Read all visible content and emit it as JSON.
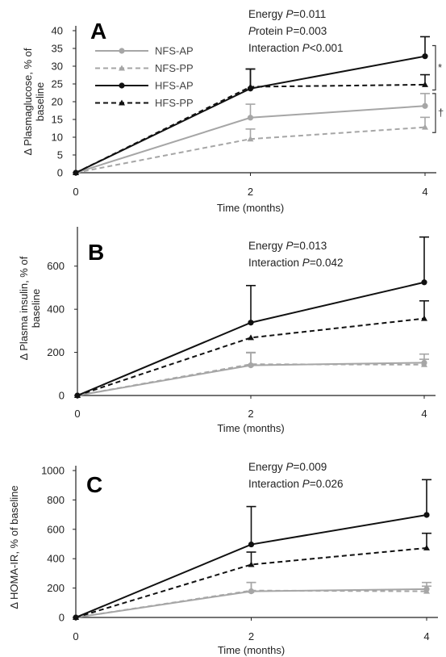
{
  "colors": {
    "nfs": "#a6a6a6",
    "hfs": "#111111",
    "axis": "#222222"
  },
  "legend": [
    {
      "label": "NFS-AP",
      "color": "#a6a6a6",
      "dashed": false,
      "marker": "circle"
    },
    {
      "label": "NFS-PP",
      "color": "#a6a6a6",
      "dashed": true,
      "marker": "triangle"
    },
    {
      "label": "HFS-AP",
      "color": "#111111",
      "dashed": false,
      "marker": "circle"
    },
    {
      "label": "HFS-PP",
      "color": "#111111",
      "dashed": true,
      "marker": "triangle"
    }
  ],
  "chart_data": [
    {
      "type": "line",
      "panel_label": "A",
      "ylabel": "Δ Plasmaglucose, % of baseline",
      "xlabel": "Time (months)",
      "x": [
        0,
        2,
        4
      ],
      "xticks": [
        "0",
        "2",
        "4"
      ],
      "ylim": [
        0,
        40
      ],
      "yticks": [
        0,
        5,
        10,
        15,
        20,
        25,
        30,
        35,
        40
      ],
      "stats": [
        "Energy P=0.011",
        "Protein P=0.003",
        "Interaction P<0.001"
      ],
      "significance": [
        "*",
        "†"
      ],
      "series": [
        {
          "name": "NFS-AP",
          "color": "#a6a6a6",
          "dashed": false,
          "marker": "circle",
          "values": [
            0,
            15.5,
            18.8
          ],
          "errors": [
            0,
            3.8,
            3.5
          ]
        },
        {
          "name": "NFS-PP",
          "color": "#a6a6a6",
          "dashed": true,
          "marker": "triangle",
          "values": [
            0,
            9.5,
            12.8
          ],
          "errors": [
            0,
            2.8,
            2.8
          ]
        },
        {
          "name": "HFS-AP",
          "color": "#111111",
          "dashed": false,
          "marker": "circle",
          "values": [
            0,
            23.7,
            32.8
          ],
          "errors": [
            0,
            5.5,
            5.5
          ]
        },
        {
          "name": "HFS-PP",
          "color": "#111111",
          "dashed": true,
          "marker": "triangle",
          "values": [
            0,
            24.2,
            24.8
          ],
          "errors": [
            0,
            5.0,
            2.8
          ]
        }
      ]
    },
    {
      "type": "line",
      "panel_label": "B",
      "ylabel": "Δ Plasma insulin, % of baseline",
      "xlabel": "Time (months)",
      "x": [
        0,
        2,
        4
      ],
      "xticks": [
        "0",
        "2",
        "4"
      ],
      "ylim": [
        0,
        760
      ],
      "yticks": [
        0,
        200,
        400,
        600
      ],
      "stats": [
        "Energy P=0.013",
        "Interaction P=0.042"
      ],
      "significance": [],
      "series": [
        {
          "name": "NFS-AP",
          "color": "#a6a6a6",
          "dashed": false,
          "marker": "circle",
          "values": [
            0,
            140,
            152
          ],
          "errors": [
            0,
            58,
            40
          ]
        },
        {
          "name": "NFS-PP",
          "color": "#a6a6a6",
          "dashed": true,
          "marker": "triangle",
          "values": [
            0,
            145,
            143
          ],
          "errors": [
            0,
            55,
            25
          ]
        },
        {
          "name": "HFS-AP",
          "color": "#111111",
          "dashed": false,
          "marker": "circle",
          "values": [
            0,
            338,
            525
          ],
          "errors": [
            0,
            172,
            210
          ]
        },
        {
          "name": "HFS-PP",
          "color": "#111111",
          "dashed": true,
          "marker": "triangle",
          "values": [
            0,
            268,
            357
          ],
          "errors": [
            0,
            0,
            82
          ]
        }
      ]
    },
    {
      "type": "line",
      "panel_label": "C",
      "ylabel": "Δ HOMA-IR, % of baseline",
      "xlabel": "Time (months)",
      "x": [
        0,
        2,
        4
      ],
      "xticks": [
        "0",
        "2",
        "4"
      ],
      "ylim": [
        0,
        1000
      ],
      "yticks": [
        0,
        200,
        400,
        600,
        800,
        1000
      ],
      "stats": [
        "Energy P=0.009",
        "Interaction P=0.026"
      ],
      "significance": [],
      "series": [
        {
          "name": "NFS-AP",
          "color": "#a6a6a6",
          "dashed": false,
          "marker": "circle",
          "values": [
            0,
            178,
            193
          ],
          "errors": [
            0,
            60,
            45
          ]
        },
        {
          "name": "NFS-PP",
          "color": "#a6a6a6",
          "dashed": true,
          "marker": "triangle",
          "values": [
            0,
            183,
            178
          ],
          "errors": [
            0,
            55,
            35
          ]
        },
        {
          "name": "HFS-AP",
          "color": "#111111",
          "dashed": false,
          "marker": "circle",
          "values": [
            0,
            497,
            698
          ],
          "errors": [
            0,
            258,
            240
          ]
        },
        {
          "name": "HFS-PP",
          "color": "#111111",
          "dashed": true,
          "marker": "triangle",
          "values": [
            0,
            360,
            473
          ],
          "errors": [
            0,
            85,
            100
          ]
        }
      ]
    }
  ]
}
